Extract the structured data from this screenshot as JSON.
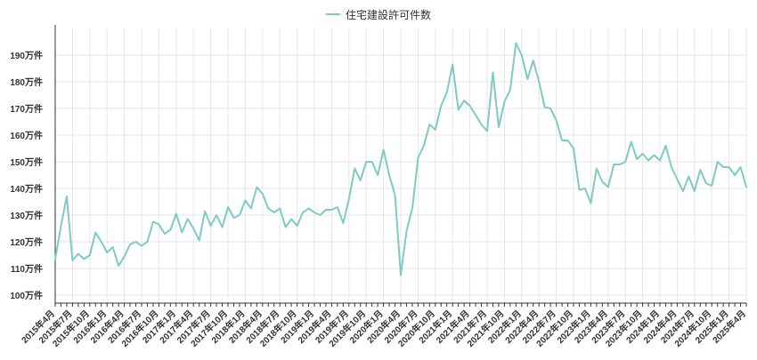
{
  "legend": {
    "label": "住宅建設許可件数"
  },
  "colors": {
    "line": "#7ecbc4",
    "grid": "#e6e6e6",
    "axis": "#333333",
    "text": "#333333"
  },
  "chart_data": {
    "type": "line",
    "series": [
      {
        "name": "住宅建設許可件数",
        "values": [
          113.5,
          126,
          137,
          113,
          115.5,
          113.5,
          115,
          123.5,
          120,
          116,
          118,
          111,
          114.5,
          119,
          120,
          118.5,
          120,
          127.5,
          126.5,
          123,
          124.5,
          130.5,
          123.5,
          128.5,
          125,
          120.5,
          131.5,
          126,
          130,
          125.5,
          133,
          129,
          130,
          135.5,
          132.5,
          140.5,
          138,
          132.5,
          131,
          132.5,
          125.5,
          128.5,
          126,
          131,
          132.5,
          131,
          130,
          132,
          132,
          133,
          127,
          136,
          147.5,
          143,
          150,
          150,
          145,
          154.5,
          145,
          137.5,
          107.5,
          124,
          132.5,
          151.5,
          156,
          164,
          162,
          171,
          176,
          186.5,
          169.5,
          173,
          171,
          167.5,
          164,
          161.5,
          183.5,
          163,
          172.5,
          177,
          194.5,
          190,
          181,
          188,
          180,
          170.5,
          170,
          165.5,
          158,
          158,
          155,
          139.5,
          140,
          134.5,
          147.5,
          142.5,
          140.5,
          149,
          149,
          150,
          157.5,
          151,
          153,
          150.5,
          152.5,
          150.5,
          156,
          148,
          143.5,
          139,
          144.5,
          139,
          147,
          142,
          141,
          150,
          148,
          148,
          145,
          148,
          140.5
        ]
      }
    ],
    "x_labels": [
      "2015年4月",
      "2015年7月",
      "2015年10月",
      "2016年1月",
      "2016年4月",
      "2016年7月",
      "2016年10月",
      "2017年1月",
      "2017年4月",
      "2017年7月",
      "2017年10月",
      "2018年1月",
      "2018年4月",
      "2018年7月",
      "2018年10月",
      "2019年1月",
      "2019年4月",
      "2019年7月",
      "2019年10月",
      "2020年1月",
      "2020年4月",
      "2020年7月",
      "2020年10月",
      "2021年1月",
      "2021年4月",
      "2021年7月",
      "2021年10月",
      "2022年1月",
      "2022年4月",
      "2022年7月",
      "2022年10月",
      "2023年1月",
      "2023年4月",
      "2023年7月",
      "2023年10月",
      "2024年1月",
      "2024年4月",
      "2024年7月",
      "2024年10月",
      "2025年1月",
      "2025年4月"
    ],
    "x_label_step_months": 3,
    "y_ticks": [
      100,
      110,
      120,
      130,
      140,
      150,
      160,
      170,
      180,
      190
    ],
    "y_tick_labels": [
      "100万件",
      "110万件",
      "120万件",
      "130万件",
      "140万件",
      "150万件",
      "160万件",
      "170万件",
      "180万件",
      "190万件"
    ],
    "ylim": [
      97,
      200
    ],
    "grid": true,
    "legend_position": "top-center"
  }
}
